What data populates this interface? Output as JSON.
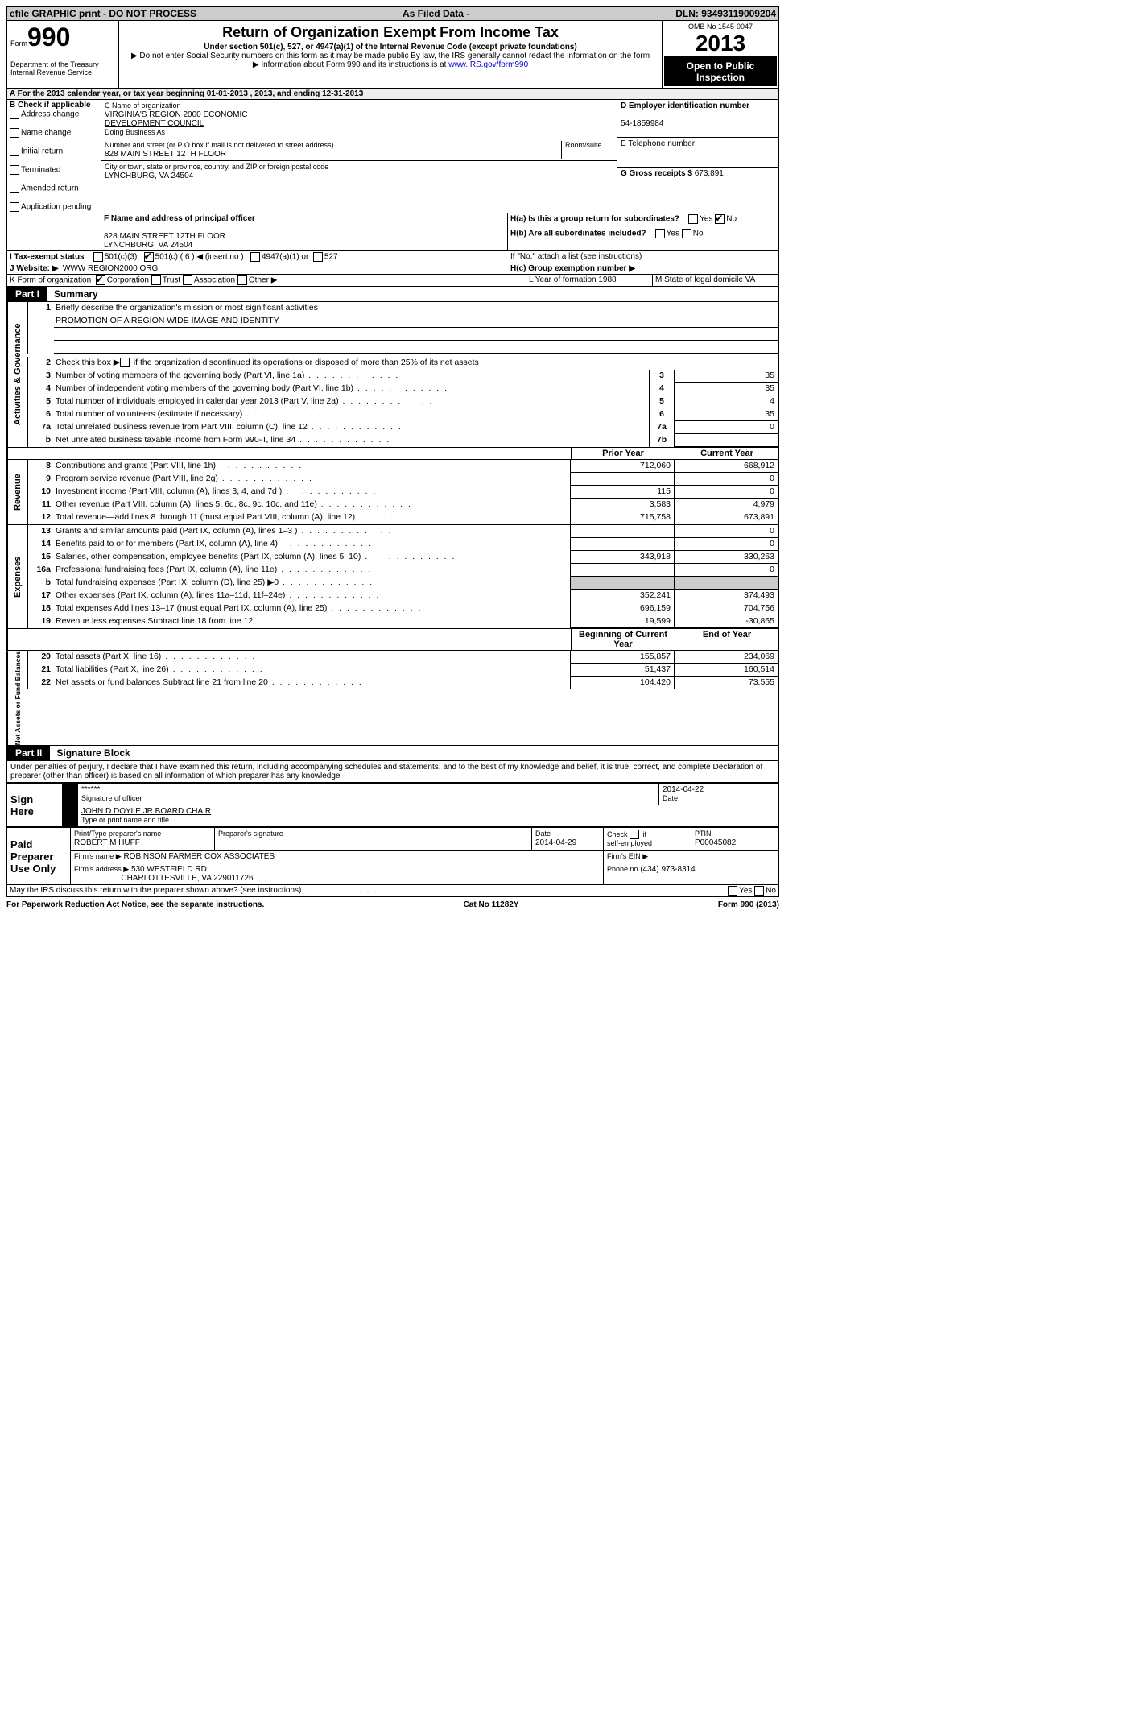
{
  "header_bar": {
    "left": "efile GRAPHIC print - DO NOT PROCESS",
    "mid": "As Filed Data -",
    "right": "DLN: 93493119009204"
  },
  "form": {
    "form_label": "Form",
    "form_no": "990",
    "dept": "Department of the Treasury",
    "irs": "Internal Revenue Service",
    "title": "Return of Organization Exempt From Income Tax",
    "subtitle": "Under section 501(c), 527, or 4947(a)(1) of the Internal Revenue Code (except private foundations)",
    "note1": "▶ Do not enter Social Security numbers on this form as it may be made public  By law, the IRS generally cannot redact the information on the form",
    "note2_pre": "▶ Information about Form 990 and its instructions is at ",
    "note2_link": "www.IRS.gov/form990",
    "omb": "OMB No  1545-0047",
    "year": "2013",
    "inspect": "Open to Public Inspection"
  },
  "rowA": "A  For the 2013 calendar year, or tax year beginning 01-01-2013     , 2013, and ending 12-31-2013",
  "sectionB": {
    "label": "B  Check if applicable",
    "items": [
      "Address change",
      "Name change",
      "Initial return",
      "Terminated",
      "Amended return",
      "Application pending"
    ]
  },
  "sectionC": {
    "label": "C Name of organization",
    "org1": "VIRGINIA'S REGION 2000 ECONOMIC",
    "org2": "DEVELOPMENT COUNCIL",
    "dba": "Doing Business As",
    "street_label": "Number and street (or P O  box if mail is not delivered to street address)",
    "room_label": "Room/suite",
    "street": "828 MAIN STREET 12TH FLOOR",
    "city_label": "City or town, state or province, country, and ZIP or foreign postal code",
    "city": "LYNCHBURG, VA  24504"
  },
  "sectionD": {
    "label": "D Employer identification number",
    "value": "54-1859984"
  },
  "sectionE": {
    "label": "E Telephone number",
    "value": ""
  },
  "sectionG": {
    "label": "G Gross receipts $",
    "value": "673,891"
  },
  "sectionF": {
    "label": "F    Name and address of principal officer",
    "line1": "828 MAIN STREET 12TH FLOOR",
    "line2": "LYNCHBURG, VA  24504"
  },
  "sectionH": {
    "ha": "H(a)  Is this a group return for subordinates?",
    "ha_no_checked": true,
    "hb": "H(b)  Are all subordinates included?",
    "hb_note": "If \"No,\" attach a list  (see instructions)",
    "hc": "H(c)   Group exemption number ▶"
  },
  "sectionI": {
    "label": "I   Tax-exempt status",
    "opts": [
      "501(c)(3)",
      "501(c) ( 6 ) ◀ (insert no )",
      "4947(a)(1) or",
      "527"
    ],
    "checked_index": 1
  },
  "sectionJ": {
    "label": "J  Website: ▶",
    "value": "WWW REGION2000 ORG"
  },
  "sectionK": {
    "label": "K Form of organization",
    "opts": [
      "Corporation",
      "Trust",
      "Association",
      "Other ▶"
    ],
    "checked_index": 0,
    "L": "L Year of formation  1988",
    "M": "M State of legal domicile  VA"
  },
  "part1": {
    "tag": "Part I",
    "title": "Summary",
    "group_ag": "Activities & Governance",
    "group_rev": "Revenue",
    "group_exp": "Expenses",
    "group_na": "Net Assets or Fund Balances",
    "l1a": "Briefly describe the organization's mission or most significant activities",
    "l1b": "PROMOTION OF A REGION WIDE IMAGE AND IDENTITY",
    "l2": "Check this box ▶      if the organization discontinued its operations or disposed of more than 25% of its net assets",
    "rows_ag": [
      {
        "no": "3",
        "text": "Number of voting members of the governing body (Part VI, line 1a)",
        "mini": "3",
        "val": "35"
      },
      {
        "no": "4",
        "text": "Number of independent voting members of the governing body (Part VI, line 1b)",
        "mini": "4",
        "val": "35"
      },
      {
        "no": "5",
        "text": "Total number of individuals employed in calendar year 2013 (Part V, line 2a)",
        "mini": "5",
        "val": "4"
      },
      {
        "no": "6",
        "text": "Total number of volunteers (estimate if necessary)",
        "mini": "6",
        "val": "35"
      },
      {
        "no": "7a",
        "text": "Total unrelated business revenue from Part VIII, column (C), line 12",
        "mini": "7a",
        "val": "0"
      },
      {
        "no": "b",
        "text": "Net unrelated business taxable income from Form 990-T, line 34",
        "mini": "7b",
        "val": ""
      }
    ],
    "hdr_prior": "Prior Year",
    "hdr_curr": "Current Year",
    "rows_rev": [
      {
        "no": "8",
        "text": "Contributions and grants (Part VIII, line 1h)",
        "prior": "712,060",
        "curr": "668,912"
      },
      {
        "no": "9",
        "text": "Program service revenue (Part VIII, line 2g)",
        "prior": "",
        "curr": "0"
      },
      {
        "no": "10",
        "text": "Investment income (Part VIII, column (A), lines 3, 4, and 7d )",
        "prior": "115",
        "curr": "0"
      },
      {
        "no": "11",
        "text": "Other revenue (Part VIII, column (A), lines 5, 6d, 8c, 9c, 10c, and 11e)",
        "prior": "3,583",
        "curr": "4,979"
      },
      {
        "no": "12",
        "text": "Total revenue—add lines 8 through 11 (must equal Part VIII, column (A), line 12)",
        "prior": "715,758",
        "curr": "673,891"
      }
    ],
    "rows_exp": [
      {
        "no": "13",
        "text": "Grants and similar amounts paid (Part IX, column (A), lines 1–3 )",
        "prior": "",
        "curr": "0"
      },
      {
        "no": "14",
        "text": "Benefits paid to or for members (Part IX, column (A), line 4)",
        "prior": "",
        "curr": "0"
      },
      {
        "no": "15",
        "text": "Salaries, other compensation, employee benefits (Part IX, column (A), lines 5–10)",
        "prior": "343,918",
        "curr": "330,263"
      },
      {
        "no": "16a",
        "text": "Professional fundraising fees (Part IX, column (A), line 11e)",
        "prior": "",
        "curr": "0"
      },
      {
        "no": "b",
        "text": "Total fundraising expenses (Part IX, column (D), line 25)  ▶0",
        "prior": "__shade__",
        "curr": "__shade__"
      },
      {
        "no": "17",
        "text": "Other expenses (Part IX, column (A), lines 11a–11d, 11f–24e)",
        "prior": "352,241",
        "curr": "374,493"
      },
      {
        "no": "18",
        "text": "Total expenses  Add lines 13–17 (must equal Part IX, column (A), line 25)",
        "prior": "696,159",
        "curr": "704,756"
      },
      {
        "no": "19",
        "text": "Revenue less expenses  Subtract line 18 from line 12",
        "prior": "19,599",
        "curr": "-30,865"
      }
    ],
    "hdr_boy": "Beginning of Current Year",
    "hdr_eoy": "End of Year",
    "rows_na": [
      {
        "no": "20",
        "text": "Total assets (Part X, line 16)",
        "prior": "155,857",
        "curr": "234,069"
      },
      {
        "no": "21",
        "text": "Total liabilities (Part X, line 26)",
        "prior": "51,437",
        "curr": "160,514"
      },
      {
        "no": "22",
        "text": "Net assets or fund balances  Subtract line 21 from line 20",
        "prior": "104,420",
        "curr": "73,555"
      }
    ]
  },
  "part2": {
    "tag": "Part II",
    "title": "Signature Block",
    "decl": "Under penalties of perjury, I declare that I have examined this return, including accompanying schedules and statements, and to the best of my knowledge and belief, it is true, correct, and complete  Declaration of preparer (other than officer) is based on all information of which preparer has any knowledge",
    "sign_here": "Sign Here",
    "sig_stars": "******",
    "sig_officer": "Signature of officer",
    "sig_date": "2014-04-22",
    "sig_date_label": "Date",
    "officer_name": "JOHN D DOYLE JR BOARD CHAIR",
    "officer_name_label": "Type or print name and title",
    "paid": "Paid Preparer Use Only",
    "prep_name_label": "Print/Type preparer's name",
    "prep_name": "ROBERT M HUFF",
    "prep_sig_label": "Preparer's signature",
    "prep_date_label": "Date",
    "prep_date": "2014-04-29",
    "self_emp": "Check        if self-employed",
    "ptin_label": "PTIN",
    "ptin": "P00045082",
    "firm_name_label": "Firm's name      ▶",
    "firm_name": "ROBINSON FARMER COX ASSOCIATES",
    "firm_ein_label": "Firm's EIN ▶",
    "firm_addr_label": "Firm's address ▶",
    "firm_addr1": "530 WESTFIELD RD",
    "firm_addr2": "CHARLOTTESVILLE, VA  229011726",
    "firm_phone_label": "Phone no",
    "firm_phone": "(434) 973-8314",
    "discuss": "May the IRS discuss this return with the preparer shown above? (see instructions)"
  },
  "footer": {
    "left": "For Paperwork Reduction Act Notice, see the separate instructions.",
    "mid": "Cat  No  11282Y",
    "right": "Form 990 (2013)"
  }
}
